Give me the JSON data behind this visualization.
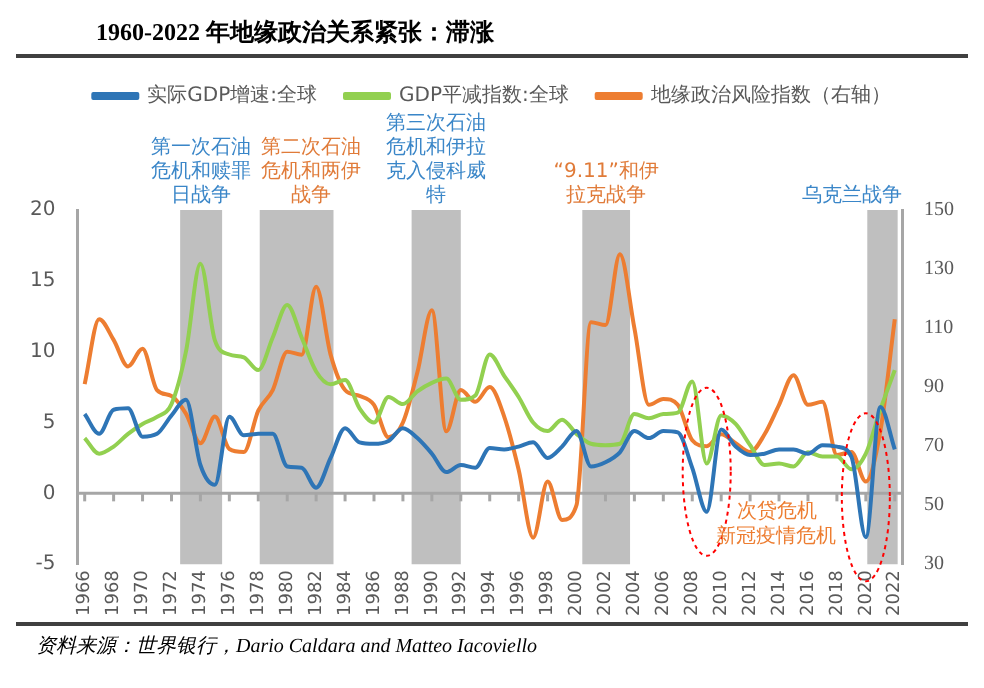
{
  "chart_data": {
    "type": "line",
    "title": "1960-2022 年地缘政治关系紧张：滞涨",
    "x": [
      1966,
      1967,
      1968,
      1969,
      1970,
      1971,
      1972,
      1973,
      1974,
      1975,
      1976,
      1977,
      1978,
      1979,
      1980,
      1981,
      1982,
      1983,
      1984,
      1985,
      1986,
      1987,
      1988,
      1989,
      1990,
      1991,
      1992,
      1993,
      1994,
      1995,
      1996,
      1997,
      1998,
      1999,
      2000,
      2001,
      2002,
      2003,
      2004,
      2005,
      2006,
      2007,
      2008,
      2009,
      2010,
      2011,
      2012,
      2013,
      2014,
      2015,
      2016,
      2017,
      2018,
      2019,
      2020,
      2021,
      2022
    ],
    "series": [
      {
        "name": "实际GDP增速:全球",
        "color": "#2e75b6",
        "values": [
          5.6,
          4.2,
          5.9,
          6.0,
          4.0,
          4.2,
          5.5,
          6.6,
          2.0,
          0.6,
          5.4,
          4.1,
          4.2,
          4.2,
          1.9,
          1.8,
          0.4,
          2.5,
          4.6,
          3.6,
          3.5,
          3.7,
          4.6,
          3.9,
          2.8,
          1.5,
          2.0,
          1.8,
          3.2,
          3.1,
          3.3,
          3.6,
          2.5,
          3.3,
          4.4,
          1.9,
          2.2,
          2.9,
          4.4,
          3.9,
          4.4,
          4.3,
          1.8,
          -1.3,
          4.5,
          3.3,
          2.7,
          2.8,
          3.1,
          3.1,
          2.8,
          3.4,
          3.3,
          2.6,
          -3.1,
          6.1,
          3.1
        ]
      },
      {
        "name": "GDP平减指数:全球",
        "color": "#92d050",
        "values": [
          3.9,
          2.8,
          3.3,
          4.2,
          4.9,
          5.4,
          6.3,
          10.0,
          16.2,
          10.8,
          9.8,
          9.6,
          8.7,
          11.0,
          13.3,
          11.0,
          8.6,
          7.7,
          8.0,
          6.0,
          5.0,
          6.8,
          6.3,
          7.2,
          7.8,
          8.1,
          6.6,
          6.9,
          9.8,
          8.3,
          6.8,
          5.0,
          4.4,
          5.2,
          4.2,
          3.5,
          3.4,
          3.5,
          5.6,
          5.3,
          5.6,
          5.7,
          7.9,
          2.1,
          5.5,
          4.9,
          3.4,
          2.0,
          2.1,
          1.9,
          2.9,
          2.6,
          2.6,
          1.7,
          2.8,
          5.9,
          8.7
        ]
      },
      {
        "name": "地缘政治风险指数（右轴）",
        "color": "#ed7d31",
        "axis": "y2",
        "values": [
          91,
          113,
          106,
          97,
          103,
          89,
          87,
          81,
          71,
          80,
          69,
          68,
          82,
          89,
          102,
          101,
          124,
          101,
          89,
          87,
          84,
          73,
          78,
          95,
          116,
          75,
          89,
          85,
          90,
          80,
          62,
          39,
          58,
          45,
          50,
          112,
          111,
          135,
          110,
          84,
          86,
          84,
          72,
          70,
          74,
          71,
          68,
          74,
          84,
          94,
          84,
          85,
          67,
          68,
          58,
          75,
          113
        ]
      }
    ],
    "xlim": [
      1965.5,
      2022.5
    ],
    "xticks": [
      1966,
      1968,
      1970,
      1972,
      1974,
      1976,
      1978,
      1980,
      1982,
      1984,
      1986,
      1988,
      1990,
      1992,
      1994,
      1996,
      1998,
      2000,
      2002,
      2004,
      2006,
      2008,
      2010,
      2012,
      2014,
      2016,
      2018,
      2020,
      2022
    ],
    "ylim": [
      -5,
      20
    ],
    "yticks": [
      -5,
      0,
      5,
      10,
      15,
      20
    ],
    "y2lim": [
      30,
      150
    ],
    "y2ticks": [
      30,
      50,
      70,
      90,
      110,
      130,
      150
    ],
    "legend": "top",
    "marker": "none",
    "line_style": "solid",
    "bands": [
      {
        "axis": "x",
        "from": 1972.6,
        "to": 1975.5,
        "label": "第一次石油危机和赎罪日战争",
        "color": "#bfbfbf"
      },
      {
        "axis": "x",
        "from": 1978.1,
        "to": 1983.2,
        "label": "第二次石油危机和两伊战争",
        "color": "#bfbfbf"
      },
      {
        "axis": "x",
        "from": 1988.6,
        "to": 1992,
        "label": "第三次石油危机和伊拉克入侵科威特",
        "color": "#bfbfbf"
      },
      {
        "axis": "x",
        "from": 2000.4,
        "to": 2003.7,
        "label": "“9.11”和伊拉克战争",
        "color": "#bfbfbf"
      },
      {
        "axis": "x",
        "from": 2020.1,
        "to": 2022.2,
        "label": "乌克兰战争",
        "color": "#bfbfbf"
      }
    ],
    "annotations": [
      {
        "text": "次贷危机",
        "x": 2009,
        "y": -1.3
      },
      {
        "text": "新冠疫情危机",
        "x": 2020,
        "y": -3.1
      },
      "资料来源：世界银行，Dario Caldara and Matteo Iacoviello"
    ]
  }
}
